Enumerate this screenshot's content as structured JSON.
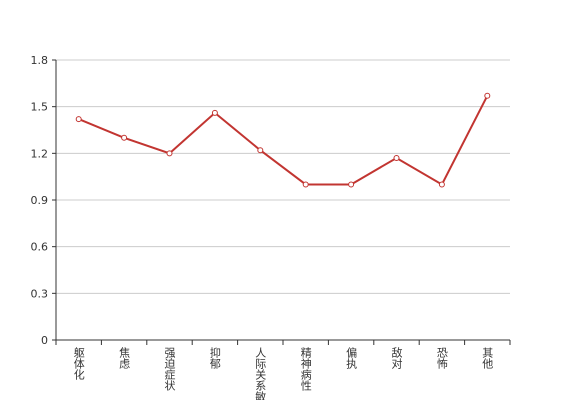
{
  "chart_data": {
    "type": "line",
    "categories": [
      "躯体化",
      "焦虑",
      "强迫症状",
      "抑郁",
      "人际关系敏感",
      "精神病性",
      "偏执",
      "敌对",
      "恐怖",
      "其他"
    ],
    "values": [
      1.42,
      1.3,
      1.2,
      1.46,
      1.22,
      1.0,
      1.0,
      1.17,
      1.0,
      1.57
    ],
    "color": "#c23531",
    "ylim": [
      0,
      1.8
    ],
    "yticks": [
      0,
      0.3,
      0.6,
      0.9,
      1.2,
      1.5,
      1.8
    ],
    "grid": true
  }
}
